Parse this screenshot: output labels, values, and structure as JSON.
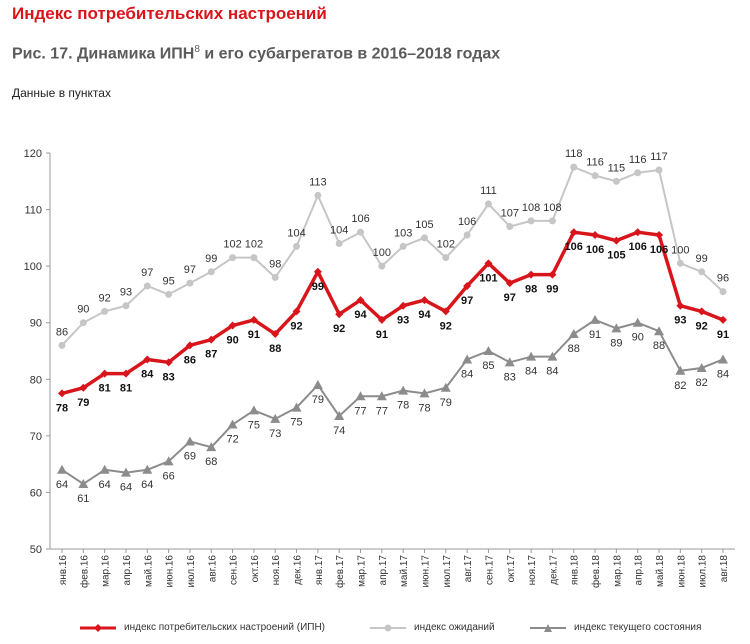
{
  "header": {
    "title": "Индекс потребительских настроений"
  },
  "figure": {
    "title": "Рис. 17. Динамика ИПН",
    "footnote_mark": "8",
    "title_suffix": " и его субагрегатов в 2016–2018 годах"
  },
  "units_label": "Данные в пунктах",
  "chart_data": {
    "type": "line",
    "ylim": [
      50,
      120
    ],
    "yticks": [
      50,
      60,
      70,
      80,
      90,
      100,
      110,
      120
    ],
    "categories": [
      "янв.16",
      "фев.16",
      "мар.16",
      "апр.16",
      "май.16",
      "июн.16",
      "июл.16",
      "авг.16",
      "сен.16",
      "окт.16",
      "ноя.16",
      "дек.16",
      "янв.17",
      "фев.17",
      "мар.17",
      "апр.17",
      "май.17",
      "июн.17",
      "июл.17",
      "авг.17",
      "сен.17",
      "окт.17",
      "ноя.17",
      "дек.17",
      "янв.18",
      "фев.18",
      "мар.18",
      "апр.18",
      "май.18",
      "июн.18",
      "июл.18",
      "авг.18"
    ],
    "series": [
      {
        "name": "индекс потребительских настроений (ИПН)",
        "color": "#d9151c",
        "values": [
          77.5,
          78.5,
          81,
          81,
          83.5,
          83,
          86,
          87,
          89.5,
          90.5,
          88,
          92,
          99,
          91.5,
          94,
          90.5,
          93,
          94,
          92,
          96.5,
          100.5,
          97,
          98.5,
          98.5,
          106,
          105.5,
          104.5,
          106,
          105.5,
          93,
          92,
          90.5
        ],
        "labels": [
          "78",
          "79",
          "81",
          "81",
          "84",
          "83",
          "86",
          "87",
          "90",
          "91",
          "88",
          "92",
          "99",
          "92",
          "94",
          "91",
          "93",
          "94",
          "92",
          "97",
          "101",
          "97",
          "98",
          "99",
          "106",
          "106",
          "105",
          "106",
          "106",
          "93",
          "92",
          "91"
        ]
      },
      {
        "name": "индекс ожиданий",
        "color": "#c6c6c6",
        "values": [
          86,
          90,
          92,
          93,
          96.5,
          95,
          97,
          99,
          101.5,
          101.5,
          98,
          103.5,
          112.5,
          104,
          106,
          100,
          103.5,
          105,
          101.5,
          105.5,
          111,
          107,
          108,
          108,
          117.5,
          116,
          115,
          116.5,
          117,
          100.5,
          99,
          95.5
        ],
        "labels": [
          "86",
          "90",
          "92",
          "93",
          "97",
          "95",
          "97",
          "99",
          "102",
          "102",
          "98",
          "104",
          "113",
          "104",
          "106",
          "100",
          "103",
          "105",
          "102",
          "106",
          "111",
          "107",
          "108",
          "108",
          "118",
          "116",
          "115",
          "116",
          "117",
          "100",
          "99",
          "96"
        ]
      },
      {
        "name": "индекс текущего состояния",
        "color": "#8c8c8c",
        "values": [
          64,
          61.5,
          64,
          63.5,
          64,
          65.5,
          69,
          68,
          72,
          74.5,
          73,
          75,
          79,
          73.5,
          77,
          77,
          78,
          77.5,
          78.5,
          83.5,
          85,
          83,
          84,
          84,
          88,
          90.5,
          89,
          90,
          88.5,
          81.5,
          82,
          83.5
        ],
        "labels": [
          "64",
          "61",
          "64",
          "64",
          "64",
          "66",
          "69",
          "68",
          "72",
          "75",
          "73",
          "75",
          "79",
          "74",
          "77",
          "77",
          "78",
          "78",
          "79",
          "84",
          "85",
          "83",
          "84",
          "84",
          "88",
          "91",
          "89",
          "90",
          "88",
          "82",
          "82",
          "84"
        ]
      }
    ]
  },
  "legend": [
    {
      "label": "индекс потребительских настроений (ИПН)"
    },
    {
      "label": "индекс ожиданий"
    },
    {
      "label": "индекс текущего состояния"
    }
  ]
}
